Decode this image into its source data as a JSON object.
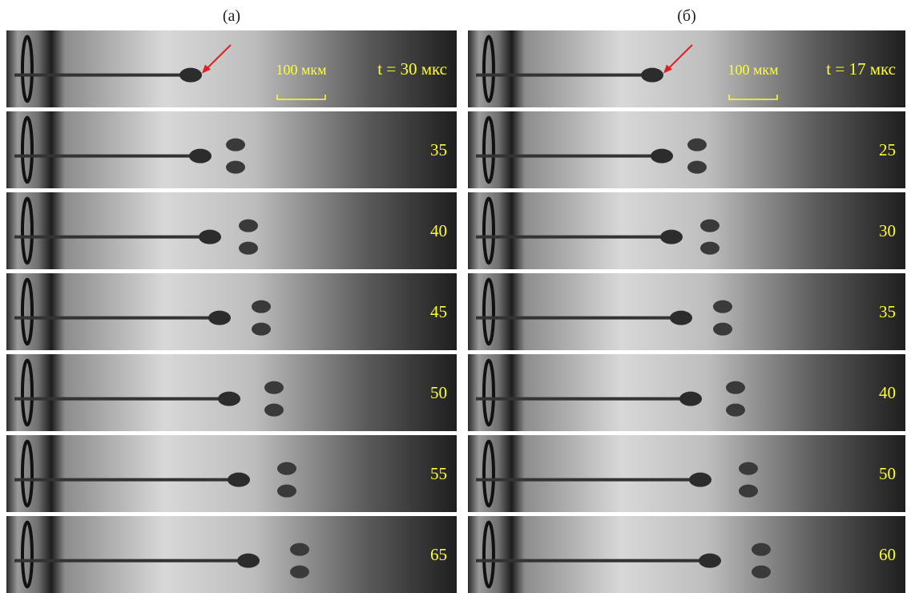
{
  "panels": [
    {
      "label": "(а)",
      "scale_bar": "100 мкм",
      "frames": [
        "t = 30 мкс",
        "35",
        "40",
        "45",
        "50",
        "55",
        "65"
      ]
    },
    {
      "label": "(б)",
      "scale_bar": "100 мкм",
      "frames": [
        "t = 17 мкс",
        "25",
        "30",
        "35",
        "40",
        "50",
        "60"
      ]
    }
  ]
}
